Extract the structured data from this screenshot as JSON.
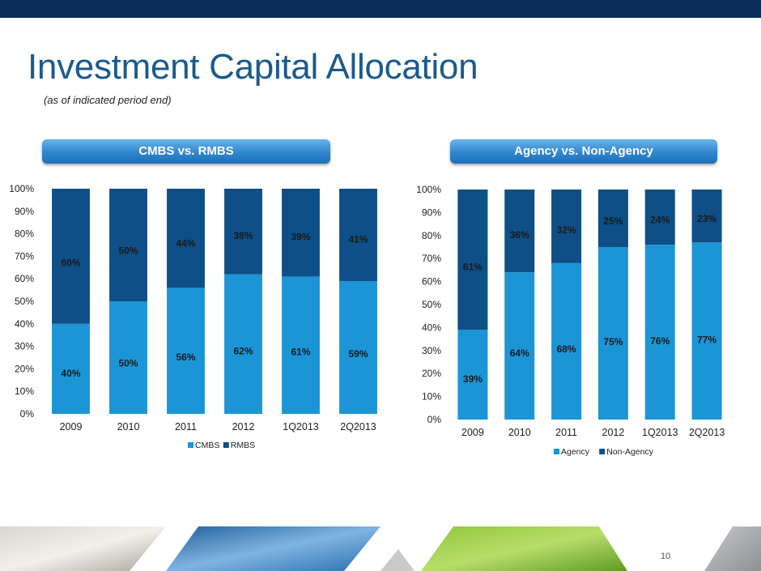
{
  "slide": {
    "title": "Investment Capital Allocation",
    "subtitle": "(as of indicated period end)",
    "page_number": "10"
  },
  "colors": {
    "primary_series": "#1b95d6",
    "secondary_series": "#0d4f86",
    "title": "#1b5a8c",
    "top_bar": "#0b2d5a"
  },
  "chart_data": [
    {
      "type": "bar",
      "stacked": true,
      "percent": true,
      "heading": "CMBS vs. RMBS",
      "categories": [
        "2009",
        "2010",
        "2011",
        "2012",
        "1Q2013",
        "2Q2013"
      ],
      "series": [
        {
          "name": "CMBS",
          "values": [
            40,
            50,
            56,
            62,
            61,
            59
          ],
          "labels": [
            "40%",
            "50%",
            "56%",
            "62%",
            "61%",
            "59%"
          ]
        },
        {
          "name": "RMBS",
          "values": [
            60,
            50,
            44,
            38,
            39,
            41
          ],
          "labels": [
            "60%",
            "50%",
            "44%",
            "38%",
            "39%",
            "41%"
          ]
        }
      ],
      "ylim": [
        0,
        100
      ],
      "yticks": [
        "0%",
        "10%",
        "20%",
        "30%",
        "40%",
        "50%",
        "60%",
        "70%",
        "80%",
        "90%",
        "100%"
      ],
      "legend": "bottom",
      "grid": false
    },
    {
      "type": "bar",
      "stacked": true,
      "percent": true,
      "heading": "Agency vs. Non-Agency",
      "categories": [
        "2009",
        "2010",
        "2011",
        "2012",
        "1Q2013",
        "2Q2013"
      ],
      "series": [
        {
          "name": "Agency",
          "values": [
            39,
            64,
            68,
            75,
            76,
            77
          ],
          "labels": [
            "39%",
            "64%",
            "68%",
            "75%",
            "76%",
            "77%"
          ]
        },
        {
          "name": "Non-Agency",
          "values": [
            61,
            36,
            32,
            25,
            24,
            23
          ],
          "labels": [
            "61%",
            "36%",
            "32%",
            "25%",
            "24%",
            "23%"
          ]
        }
      ],
      "ylim": [
        0,
        100
      ],
      "yticks": [
        "0%",
        "10%",
        "20%",
        "30%",
        "40%",
        "50%",
        "60%",
        "70%",
        "80%",
        "90%",
        "100%"
      ],
      "legend": "bottom",
      "grid": false
    }
  ]
}
